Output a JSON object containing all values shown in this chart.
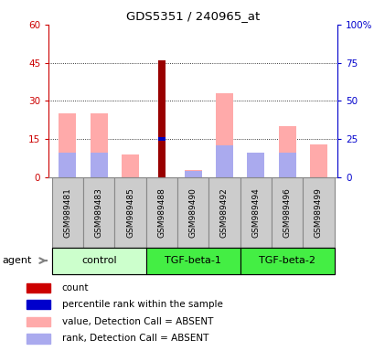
{
  "title": "GDS5351 / 240965_at",
  "samples": [
    "GSM989481",
    "GSM989483",
    "GSM989485",
    "GSM989488",
    "GSM989490",
    "GSM989492",
    "GSM989494",
    "GSM989496",
    "GSM989499"
  ],
  "groups": [
    {
      "label": "control",
      "span": [
        0,
        3
      ],
      "color_light": "#ccffcc",
      "color_dark": "#66ff66"
    },
    {
      "label": "TGF-beta-1",
      "span": [
        3,
        6
      ],
      "color_light": "#66ff66",
      "color_dark": "#33dd33"
    },
    {
      "label": "TGF-beta-2",
      "span": [
        6,
        9
      ],
      "color_light": "#44ee44",
      "color_dark": "#22cc22"
    }
  ],
  "left_ylim": [
    0,
    60
  ],
  "left_yticks": [
    0,
    15,
    30,
    45,
    60
  ],
  "right_ylim": [
    0,
    100
  ],
  "right_yticks": [
    0,
    25,
    50,
    75,
    100
  ],
  "bars": {
    "value_absent": [
      25,
      25,
      9,
      0,
      3,
      33,
      0,
      20,
      13
    ],
    "rank_absent": [
      16,
      16,
      0,
      0,
      4,
      21,
      16,
      16,
      0
    ],
    "count": [
      0,
      0,
      0,
      46,
      0,
      0,
      0,
      0,
      0
    ],
    "pct_rank": [
      0,
      0,
      0,
      25,
      0,
      0,
      0,
      0,
      0
    ]
  },
  "colors": {
    "value_absent": "#ffaaaa",
    "rank_absent": "#aaaaee",
    "count": "#990000",
    "pct_rank": "#0000bb",
    "left_axis": "#cc0000",
    "right_axis": "#0000cc",
    "bar_bg": "#cccccc",
    "sample_box": "#cccccc"
  },
  "legend": [
    {
      "color": "#cc0000",
      "label": "count"
    },
    {
      "color": "#0000cc",
      "label": "percentile rank within the sample"
    },
    {
      "color": "#ffaaaa",
      "label": "value, Detection Call = ABSENT"
    },
    {
      "color": "#aaaaee",
      "label": "rank, Detection Call = ABSENT"
    }
  ],
  "agent_label": "agent",
  "bar_width": 0.55
}
